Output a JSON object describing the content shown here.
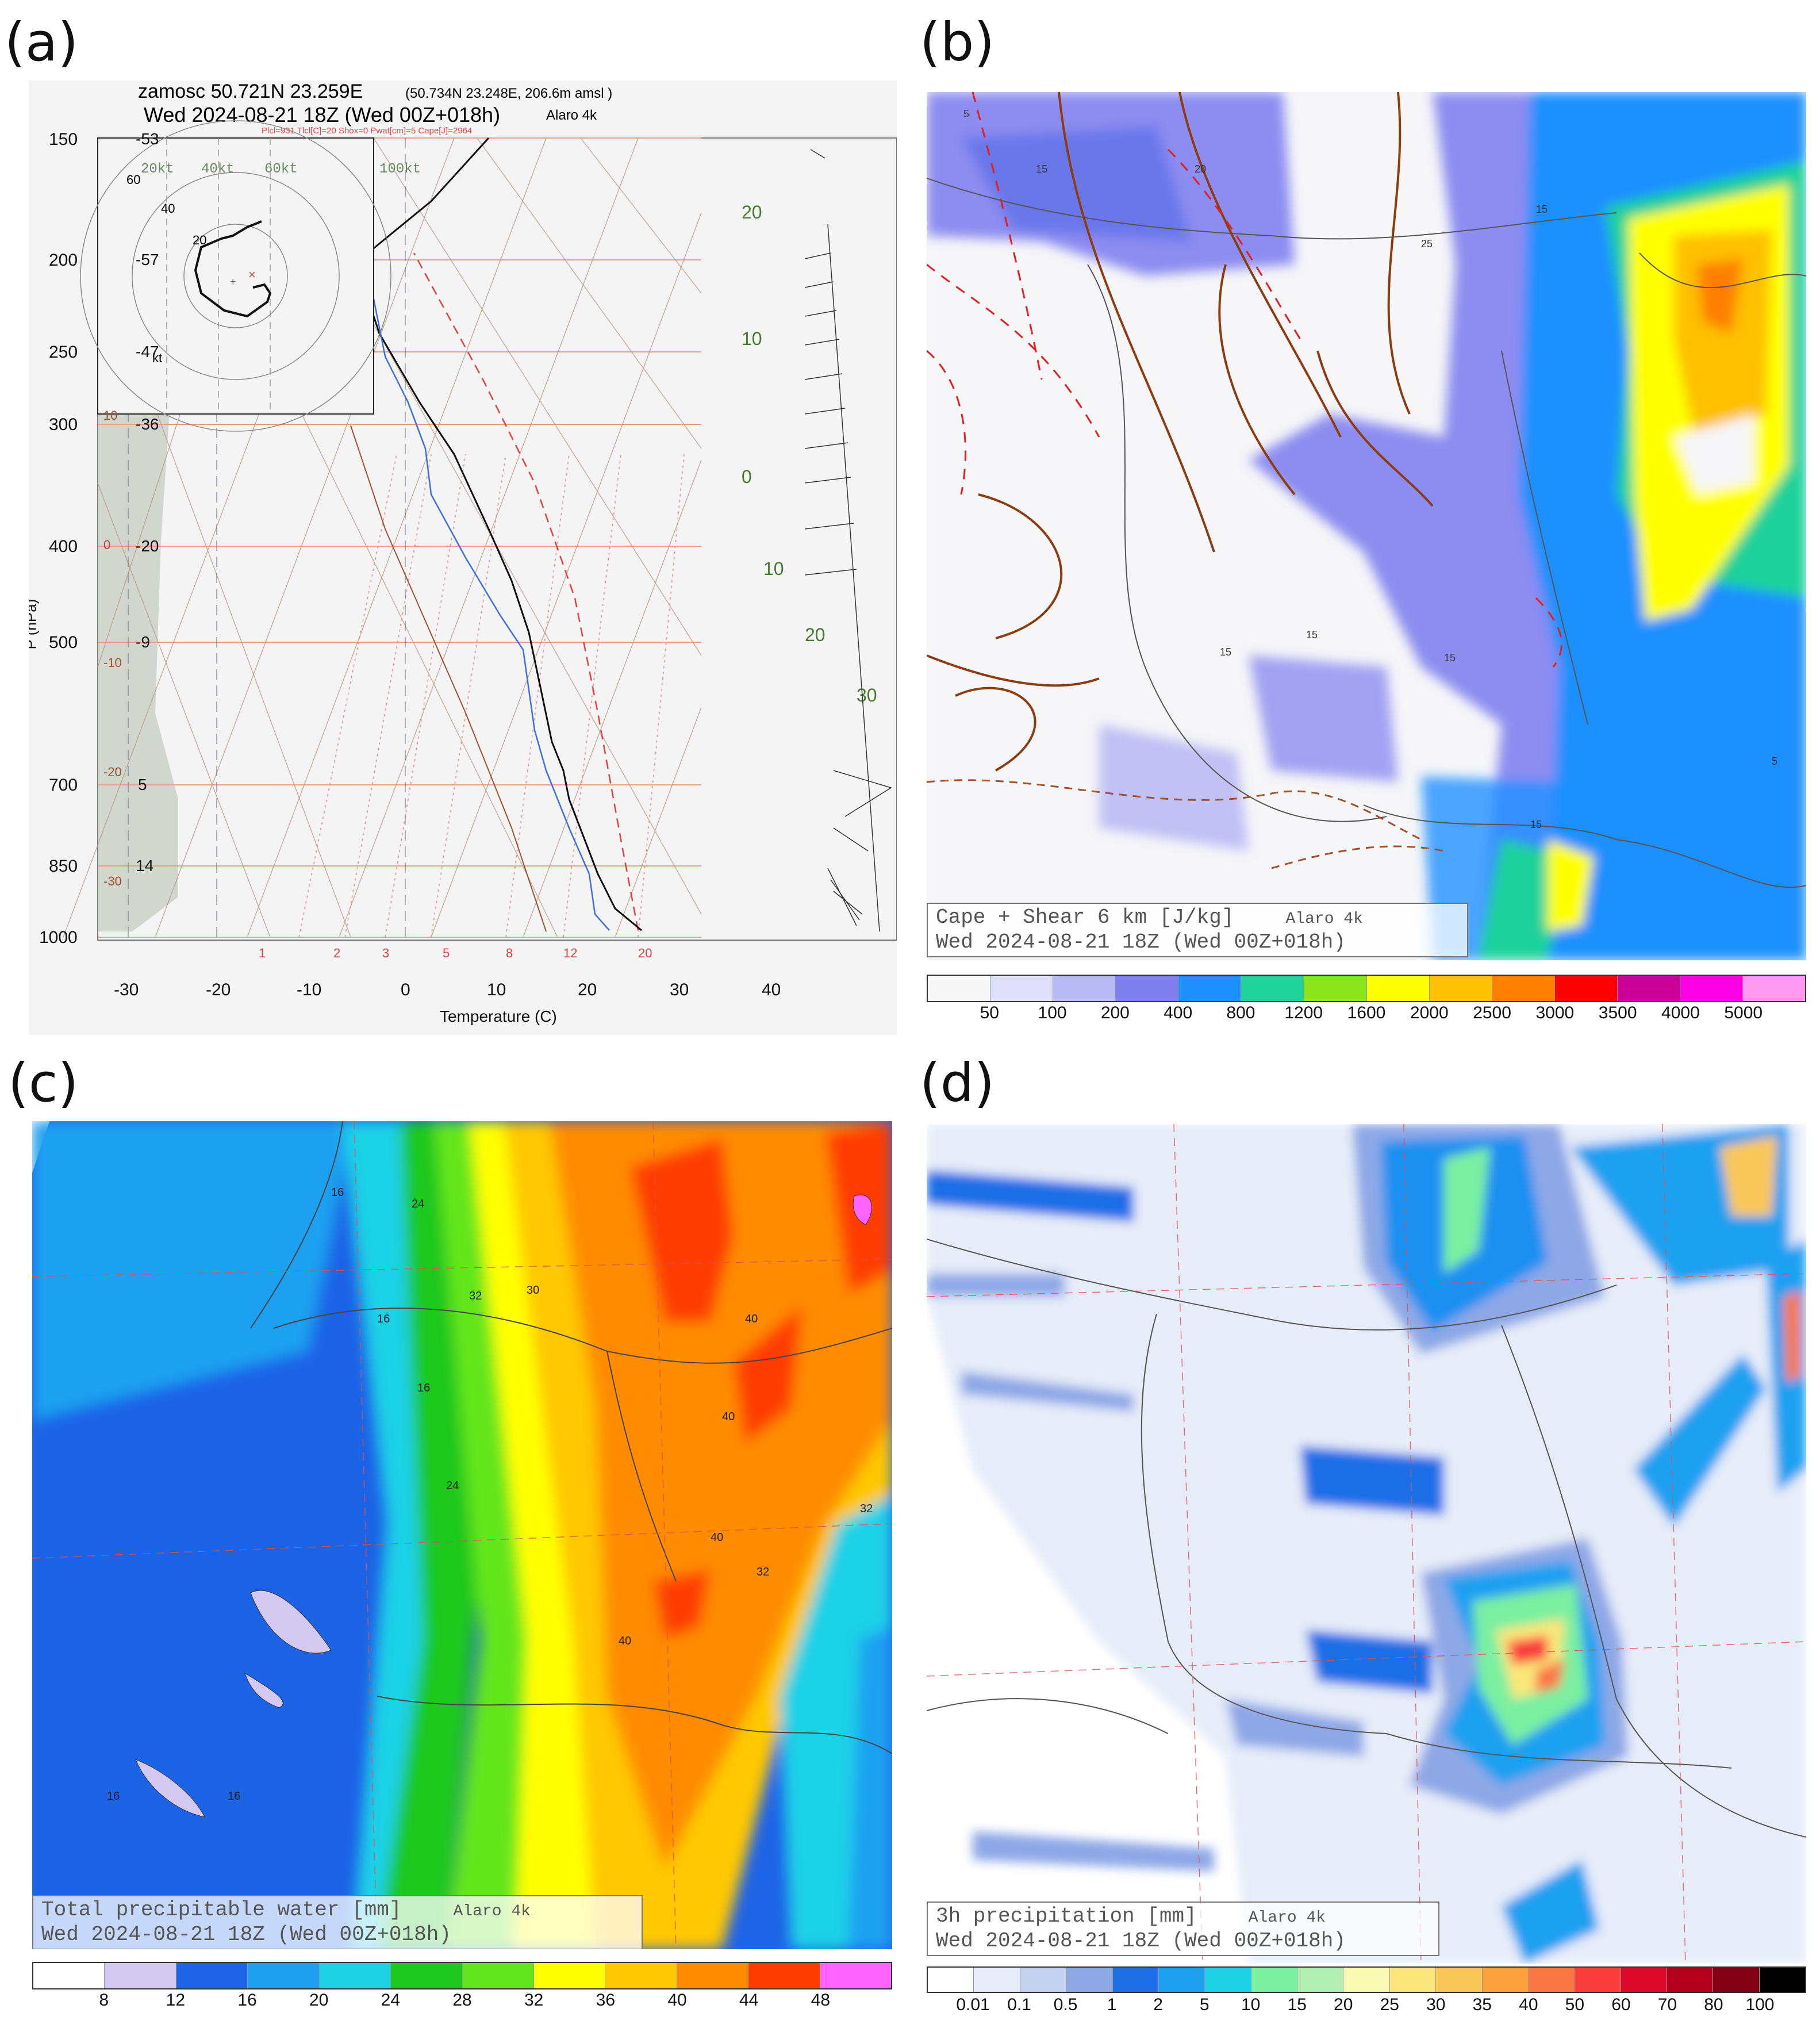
{
  "panels": {
    "a": {
      "letter": "(a)",
      "header_line1": "zamosc 50.721N 23.259E",
      "header_loc": "(50.734N 23.248E, 206.6m amsl )",
      "header_line2": "Wed 2024-08-21 18Z (Wed 00Z+018h)",
      "model": "Alaro 4k",
      "params": "Plcl=931 Tlcl[C]=20 Shox=0 Pwat[cm]=5 Cape[J]=2964",
      "ylabel": "P (hPa)",
      "xlabel": "Temperature (C)",
      "pressure_ticks": [
        "150",
        "200",
        "250",
        "300",
        "400",
        "500",
        "700",
        "850",
        "1000"
      ],
      "height_ticks": [
        "-53",
        "-57",
        "-47",
        "-36",
        "-20",
        "-9",
        "5",
        "14"
      ],
      "temp_ticks": [
        "-30",
        "-20",
        "-10",
        "0",
        "10",
        "20",
        "30",
        "40"
      ],
      "hodo_kt": [
        "20kt",
        "40kt",
        "60kt",
        "100kt"
      ],
      "hodo_rings": [
        "60",
        "40",
        "20"
      ],
      "hodo_unit": "kt",
      "mixing_ratio": [
        "1",
        "2",
        "3",
        "5",
        "8",
        "12",
        "20"
      ],
      "theta_labels": [
        "20",
        "10",
        "0",
        "10",
        "20",
        "30"
      ],
      "left_labels": [
        "10",
        "0",
        "-10",
        "-20",
        "-30"
      ]
    },
    "b": {
      "letter": "(b)",
      "caption_line1": "Cape + Shear 6 km  [J/kg]",
      "caption_model": "Alaro 4k",
      "caption_line2": "Wed 2024-08-21 18Z (Wed 00Z+018h)",
      "contour_labels": [
        "5",
        "15",
        "20",
        "25",
        "15",
        "15",
        "15",
        "15",
        "5",
        "15"
      ],
      "colorbar": {
        "labels": [
          "50",
          "100",
          "200",
          "400",
          "800",
          "1200",
          "1600",
          "2000",
          "2500",
          "3000",
          "3500",
          "4000",
          "5000"
        ],
        "colors": [
          "#f7f7f7",
          "#e0e0fa",
          "#b9b9f5",
          "#7f7fef",
          "#1e90ff",
          "#1ed29a",
          "#8be41a",
          "#ffff00",
          "#ffc000",
          "#ff8000",
          "#ff0000",
          "#cc0099",
          "#ff00e6",
          "#ff99f0"
        ]
      }
    },
    "c": {
      "letter": "(c)",
      "caption_line1": "Total precipitable water   [mm]",
      "caption_model": "Alaro 4k",
      "caption_line2": "Wed 2024-08-21 18Z (Wed 00Z+018h)",
      "contour_labels": [
        "16",
        "24",
        "32",
        "30",
        "16",
        "16",
        "24",
        "40",
        "40",
        "32",
        "40",
        "32",
        "40",
        "16",
        "16"
      ],
      "colorbar": {
        "labels": [
          "8",
          "12",
          "16",
          "20",
          "24",
          "28",
          "32",
          "36",
          "40",
          "44",
          "48"
        ],
        "colors": [
          "#ffffff",
          "#d2c8f0",
          "#1e64e6",
          "#1ea0f0",
          "#1ed2e6",
          "#1ec81e",
          "#64e61e",
          "#ffff00",
          "#ffc800",
          "#ff8c00",
          "#ff3c00",
          "#ff64ff"
        ]
      }
    },
    "d": {
      "letter": "(d)",
      "caption_line1": "3h precipitation  [mm]",
      "caption_model": "Alaro 4k",
      "caption_line2": "Wed 2024-08-21 18Z (Wed 00Z+018h)",
      "colorbar": {
        "labels": [
          "0.01",
          "0.1",
          "0.5",
          "1",
          "2",
          "5",
          "10",
          "15",
          "20",
          "25",
          "30",
          "35",
          "40",
          "50",
          "60",
          "70",
          "80",
          "100"
        ],
        "colors": [
          "#ffffff",
          "#e6ecf8",
          "#c4d2f0",
          "#8ea8e6",
          "#1e6ee6",
          "#1ea0f0",
          "#1ed2e6",
          "#7af0a0",
          "#b4f0b4",
          "#fafab4",
          "#fae67a",
          "#fac85a",
          "#faa03c",
          "#fa7846",
          "#fa3c3c",
          "#dc0a28",
          "#b4001e",
          "#820014",
          "#000000"
        ]
      }
    }
  }
}
